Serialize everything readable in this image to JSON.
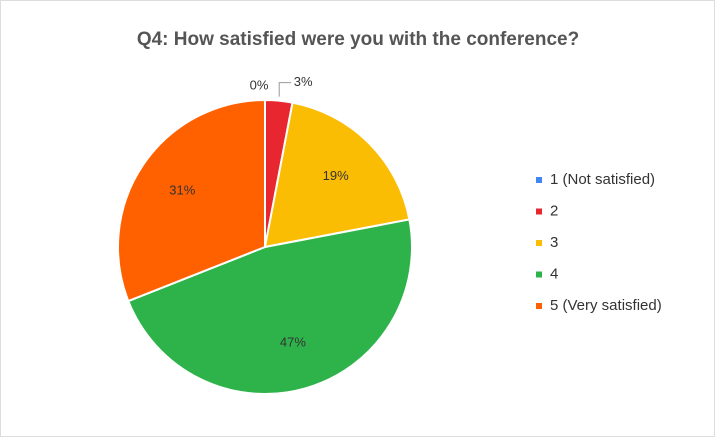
{
  "chart_data": {
    "type": "pie",
    "title": "Q4: How satisfied were you with the conference?",
    "categories": [
      "1 (Not satisfied)",
      "2",
      "3",
      "4",
      "5 (Very satisfied)"
    ],
    "values": [
      0,
      3,
      19,
      47,
      31
    ],
    "value_labels": [
      "0%",
      "3%",
      "19%",
      "47%",
      "31%"
    ],
    "colors": [
      "#4285f4",
      "#e8262f",
      "#fbbc04",
      "#2eb34a",
      "#ff6000"
    ],
    "legend": "right"
  }
}
